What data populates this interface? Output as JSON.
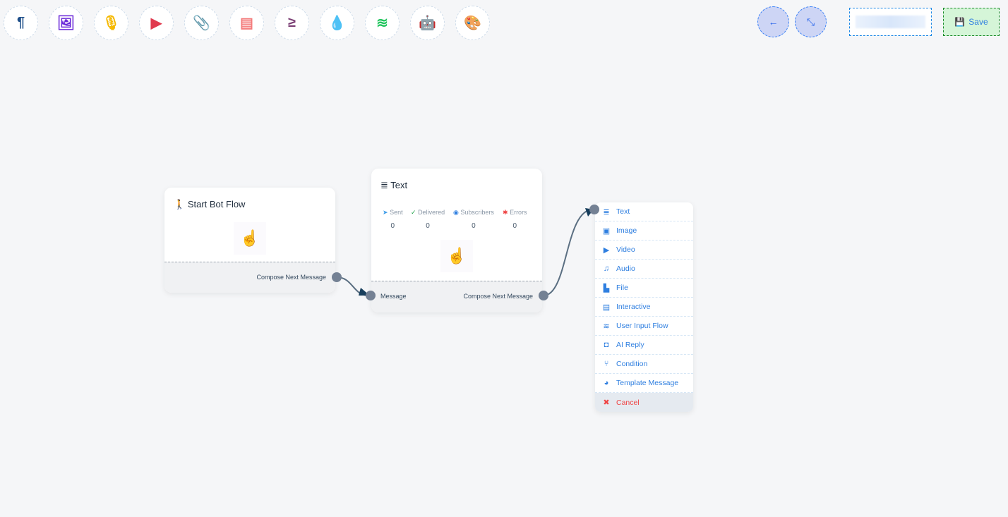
{
  "toolbar": [
    {
      "icon": "paragraph-icon",
      "glyph": "¶",
      "color": "#1d4e89"
    },
    {
      "icon": "image-icon",
      "glyph": "🖼",
      "color": "#6c2bd9"
    },
    {
      "icon": "microphone-icon",
      "glyph": "🎙",
      "color": "#f5b800"
    },
    {
      "icon": "youtube-icon",
      "glyph": "▶",
      "color": "#e03a4e"
    },
    {
      "icon": "paperclip-icon",
      "glyph": "📎",
      "color": "#2e9b3c"
    },
    {
      "icon": "newspaper-icon",
      "glyph": "▤",
      "color": "#f47c7c"
    },
    {
      "icon": "greater-equal-icon",
      "glyph": "≥",
      "color": "#7a3d73"
    },
    {
      "icon": "droplet-icon",
      "glyph": "💧",
      "color": "#c8103a"
    },
    {
      "icon": "stack-overflow-icon",
      "glyph": "≋",
      "color": "#22c55e"
    },
    {
      "icon": "robot-icon",
      "glyph": "🤖",
      "color": "#1414d6"
    },
    {
      "icon": "palette-icon",
      "glyph": "🎨",
      "color": "#22c522"
    }
  ],
  "header": {
    "back_icon": "←",
    "compress_icon": "⤡",
    "save_label": "Save"
  },
  "start_node": {
    "title": "Start Bot Flow",
    "output": "Compose Next Message"
  },
  "text_node": {
    "title": "Text",
    "stats": [
      {
        "label": "Sent",
        "value": "0",
        "icon": "paper-plane-icon",
        "glyph": "➤",
        "color": "#3b9be8"
      },
      {
        "label": "Delivered",
        "value": "0",
        "icon": "check-circle-icon",
        "glyph": "✓",
        "color": "#22a34a"
      },
      {
        "label": "Subscribers",
        "value": "0",
        "icon": "user-circle-icon",
        "glyph": "◉",
        "color": "#2f7fe0"
      },
      {
        "label": "Errors",
        "value": "0",
        "icon": "bug-icon",
        "glyph": "✱",
        "color": "#ef4444"
      }
    ],
    "input": "Message",
    "output": "Compose Next Message"
  },
  "menu": [
    {
      "label": "Text",
      "icon": "list-icon",
      "glyph": "≣"
    },
    {
      "label": "Image",
      "icon": "image-icon",
      "glyph": "▣"
    },
    {
      "label": "Video",
      "icon": "youtube-icon",
      "glyph": "▶"
    },
    {
      "label": "Audio",
      "icon": "music-icon",
      "glyph": "♫"
    },
    {
      "label": "File",
      "icon": "file-pdf-icon",
      "glyph": "▙"
    },
    {
      "label": "Interactive",
      "icon": "newspaper-icon",
      "glyph": "▤"
    },
    {
      "label": "User Input Flow",
      "icon": "stack-icon",
      "glyph": "≋"
    },
    {
      "label": "AI Reply",
      "icon": "robot-icon",
      "glyph": "◘"
    },
    {
      "label": "Condition",
      "icon": "code-branch-icon",
      "glyph": "⑂"
    },
    {
      "label": "Template Message",
      "icon": "palette-icon",
      "glyph": "◕"
    },
    {
      "label": "Cancel",
      "icon": "close-circle-icon",
      "glyph": "✖"
    }
  ]
}
